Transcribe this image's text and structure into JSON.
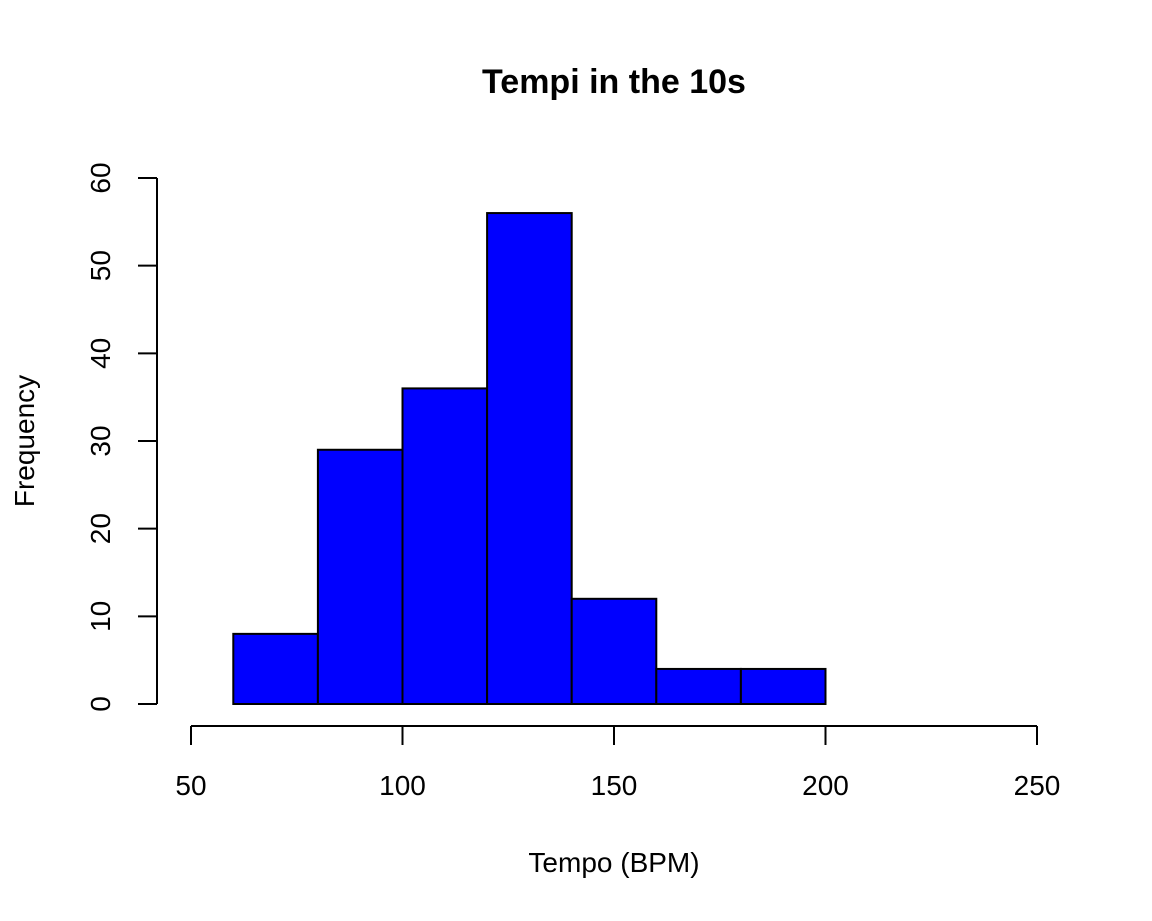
{
  "chart_data": {
    "type": "bar",
    "subtype": "histogram",
    "title": "Tempi in the 10s",
    "xlabel": "Tempo (BPM)",
    "ylabel": "Frequency",
    "bins": [
      {
        "from": 60,
        "to": 80,
        "count": 8
      },
      {
        "from": 80,
        "to": 100,
        "count": 29
      },
      {
        "from": 100,
        "to": 120,
        "count": 36
      },
      {
        "from": 120,
        "to": 140,
        "count": 56
      },
      {
        "from": 140,
        "to": 160,
        "count": 12
      },
      {
        "from": 160,
        "to": 180,
        "count": 4
      },
      {
        "from": 180,
        "to": 200,
        "count": 4
      }
    ],
    "xlim": [
      50,
      250
    ],
    "ylim": [
      0,
      60
    ],
    "xticks": [
      "50",
      "100",
      "150",
      "200",
      "250"
    ],
    "yticks": [
      "0",
      "10",
      "20",
      "30",
      "40",
      "50",
      "60"
    ],
    "bar_color": "#0000ff",
    "border_color": "#000000",
    "grid": false,
    "legend": "none"
  }
}
